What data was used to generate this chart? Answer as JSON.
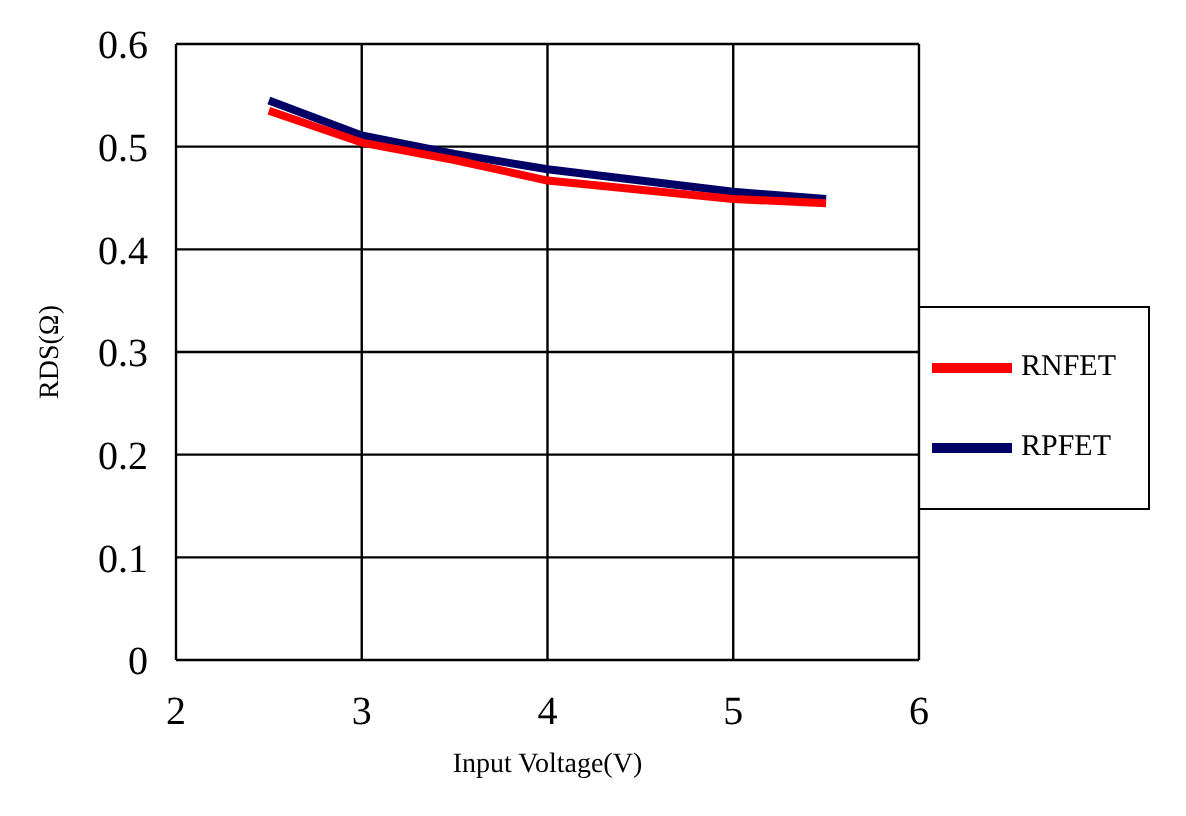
{
  "chart_data": {
    "type": "line",
    "xlabel": "Input Voltage(V)",
    "ylabel": "RDS(Ω)",
    "x": [
      2.5,
      3,
      3.5,
      4,
      4.5,
      5,
      5.5
    ],
    "series": [
      {
        "name": "RPFET",
        "color": "#000066",
        "values": [
          0.545,
          0.511,
          0.493,
          0.478,
          0.467,
          0.456,
          0.449
        ]
      },
      {
        "name": "RNFET",
        "color": "#ff0000",
        "values": [
          0.535,
          0.504,
          0.487,
          0.467,
          0.458,
          0.449,
          0.445
        ]
      }
    ],
    "xlim": [
      2,
      6
    ],
    "xticks": [
      2,
      3,
      4,
      5,
      6
    ],
    "ylim": [
      0,
      0.6
    ],
    "yticks": [
      0,
      0.1,
      0.2,
      0.3,
      0.4,
      0.5,
      0.6
    ],
    "grid": true,
    "legend": "right",
    "marker": "none",
    "line_style": "solid"
  }
}
